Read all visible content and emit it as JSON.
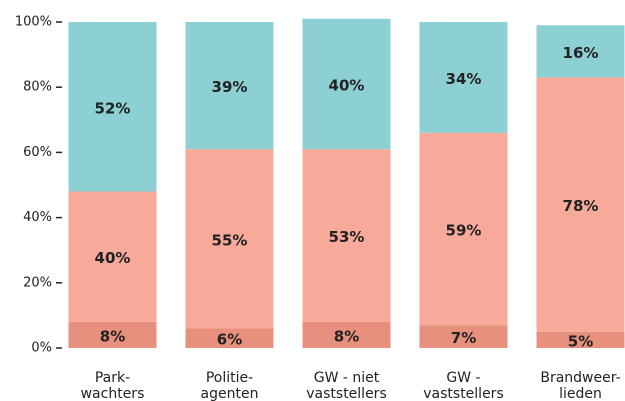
{
  "chart_data": {
    "type": "stacked-bar",
    "categories": [
      "Park-\nwachters",
      "Politie-\nagenten",
      "GW - niet\nvaststellers",
      "GW -\nvaststellers",
      "Brandweer-\nlieden"
    ],
    "series": [
      {
        "color": "#e8907e",
        "values": [
          8,
          6,
          8,
          7,
          5
        ],
        "value_labels": [
          "8%",
          "6%",
          "8%",
          "7%",
          "5%"
        ]
      },
      {
        "color": "#f7a99a",
        "values": [
          40,
          55,
          53,
          59,
          78
        ],
        "value_labels": [
          "40%",
          "55%",
          "53%",
          "59%",
          "78%"
        ]
      },
      {
        "color": "#8dd0d4",
        "values": [
          52,
          39,
          40,
          34,
          16
        ],
        "value_labels": [
          "52%",
          "39%",
          "40%",
          "34%",
          "16%"
        ]
      }
    ],
    "ylim": [
      0,
      100
    ],
    "yticks": [
      {
        "value": 0,
        "label": "0%"
      },
      {
        "value": 20,
        "label": "20%"
      },
      {
        "value": 40,
        "label": "40%"
      },
      {
        "value": 60,
        "label": "60%"
      },
      {
        "value": 80,
        "label": "80%"
      },
      {
        "value": 100,
        "label": "100%"
      }
    ]
  }
}
